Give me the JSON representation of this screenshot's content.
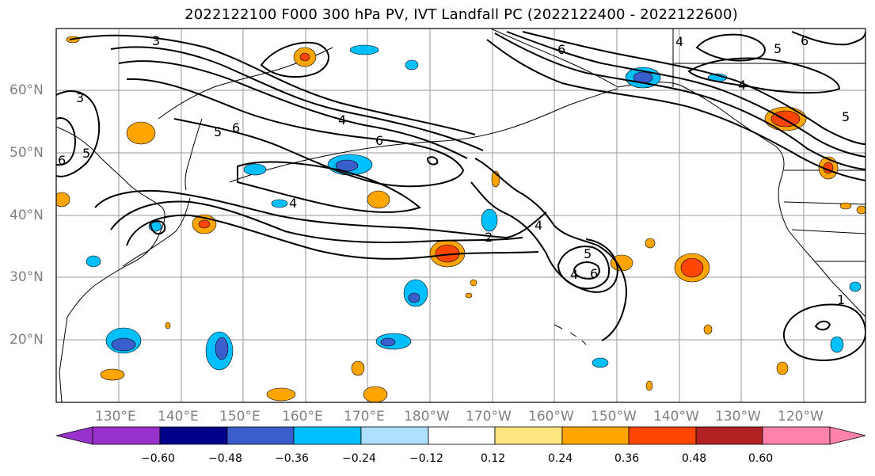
{
  "title": "2022122100 F000 300 hPa PV, IVT Landfall PC (2022122400 - 2022122600)",
  "lat_labels": [
    "60°N",
    "50°N",
    "40°N",
    "30°N",
    "20°N"
  ],
  "lon_labels": [
    "130°E",
    "140°E",
    "150°E",
    "160°E",
    "170°E",
    "180°W",
    "170°W",
    "160°W",
    "150°W",
    "140°W",
    "130°W",
    "120°W"
  ],
  "colorbar": {
    "colors": [
      "#9932CC",
      "#00008B",
      "#3A5FCD",
      "#00BFFF",
      "#ADDFFF",
      "#FFFFFF",
      "#FFE680",
      "#FFA500",
      "#FF4500",
      "#B22222",
      "#FF82AB"
    ],
    "ticks": [
      "−0.60",
      "−0.48",
      "−0.36",
      "−0.24",
      "−0.12",
      "0.12",
      "0.24",
      "0.36",
      "0.48",
      "0.60"
    ]
  },
  "contour_labels": [
    "3",
    "3",
    "5",
    "6",
    "4",
    "6",
    "5",
    "6",
    "4",
    "2",
    "4",
    "5",
    "6",
    "4",
    "6",
    "6",
    "4",
    "5",
    "4",
    "5",
    "1"
  ]
}
